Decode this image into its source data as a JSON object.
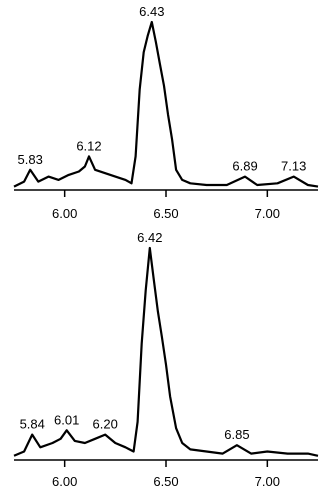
{
  "chart_data": [
    {
      "type": "line",
      "x_range": [
        5.75,
        7.25
      ],
      "ylim": [
        0,
        100
      ],
      "ticks": [
        {
          "value": 6.0,
          "label": "6.00"
        },
        {
          "value": 6.5,
          "label": "6.50"
        },
        {
          "value": 7.0,
          "label": "7.00"
        }
      ],
      "peak_labels": [
        {
          "x": 5.83,
          "y": 12,
          "label": "5.83"
        },
        {
          "x": 6.12,
          "y": 20,
          "label": "6.12"
        },
        {
          "x": 6.43,
          "y": 100,
          "label": "6.43"
        },
        {
          "x": 6.89,
          "y": 8,
          "label": "6.89"
        },
        {
          "x": 7.13,
          "y": 8,
          "label": "7.13"
        }
      ],
      "x": [
        5.75,
        5.8,
        5.83,
        5.87,
        5.92,
        5.97,
        6.02,
        6.07,
        6.1,
        6.12,
        6.15,
        6.2,
        6.25,
        6.3,
        6.33,
        6.35,
        6.37,
        6.39,
        6.41,
        6.43,
        6.45,
        6.47,
        6.49,
        6.51,
        6.53,
        6.55,
        6.58,
        6.62,
        6.7,
        6.8,
        6.89,
        6.95,
        7.05,
        7.13,
        7.2,
        7.25
      ],
      "y": [
        2,
        5,
        12,
        5,
        8,
        6,
        9,
        11,
        14,
        20,
        12,
        10,
        8,
        6,
        4,
        20,
        60,
        82,
        92,
        100,
        88,
        75,
        62,
        45,
        30,
        12,
        6,
        4,
        3,
        3,
        8,
        3,
        4,
        8,
        3,
        2
      ]
    },
    {
      "type": "line",
      "x_range": [
        5.75,
        7.25
      ],
      "ylim": [
        0,
        100
      ],
      "ticks": [
        {
          "value": 6.0,
          "label": "6.00"
        },
        {
          "value": 6.5,
          "label": "6.50"
        },
        {
          "value": 7.0,
          "label": "7.00"
        }
      ],
      "peak_labels": [
        {
          "x": 5.84,
          "y": 12,
          "label": "5.84"
        },
        {
          "x": 6.01,
          "y": 14,
          "label": "6.01"
        },
        {
          "x": 6.2,
          "y": 12,
          "label": "6.20"
        },
        {
          "x": 6.42,
          "y": 100,
          "label": "6.42"
        },
        {
          "x": 6.85,
          "y": 7,
          "label": "6.85"
        }
      ],
      "x": [
        5.75,
        5.8,
        5.84,
        5.88,
        5.94,
        5.98,
        6.01,
        6.05,
        6.1,
        6.15,
        6.2,
        6.25,
        6.3,
        6.34,
        6.36,
        6.38,
        6.4,
        6.42,
        6.44,
        6.46,
        6.48,
        6.5,
        6.52,
        6.55,
        6.58,
        6.62,
        6.7,
        6.78,
        6.85,
        6.92,
        7.0,
        7.1,
        7.2,
        7.25
      ],
      "y": [
        2,
        4,
        12,
        6,
        8,
        10,
        14,
        9,
        8,
        10,
        12,
        8,
        6,
        4,
        18,
        55,
        80,
        100,
        85,
        70,
        58,
        45,
        30,
        15,
        8,
        5,
        4,
        3,
        7,
        3,
        4,
        3,
        3,
        2
      ]
    }
  ]
}
